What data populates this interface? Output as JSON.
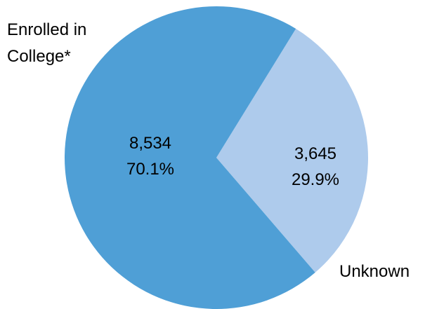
{
  "chart_data": {
    "type": "pie",
    "title": "",
    "slices": [
      {
        "category_lines": [
          "Enrolled in",
          "College*"
        ],
        "value": 8534,
        "value_text": "8,534",
        "percent": 70.1,
        "percent_text": "70.1%",
        "color": "#4f9fd6"
      },
      {
        "category_lines": [
          "Unknown"
        ],
        "value": 3645,
        "value_text": "3,645",
        "percent": 29.9,
        "percent_text": "29.9%",
        "color": "#aecbec"
      }
    ]
  }
}
